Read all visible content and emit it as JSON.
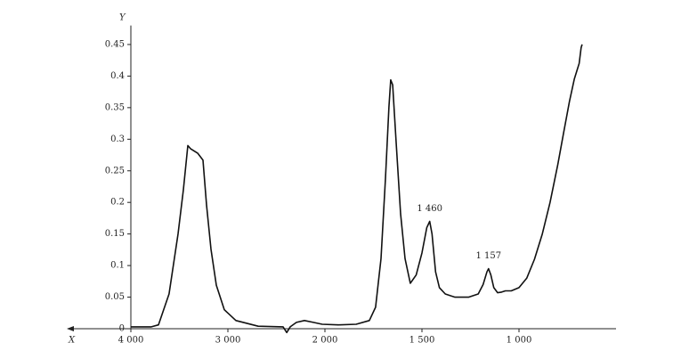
{
  "chart_data": {
    "type": "line",
    "xlabel": "X",
    "ylabel": "Y",
    "x": [
      4000,
      3789,
      3716,
      3606,
      3514,
      3459,
      3413,
      3385,
      3312,
      3257,
      3220,
      3174,
      3119,
      3037,
      2917,
      2688,
      2431,
      2394,
      2358,
      2294,
      2211,
      2119,
      2028,
      1931,
      1839,
      1771,
      1739,
      1711,
      1688,
      1670,
      1661,
      1651,
      1633,
      1610,
      1587,
      1560,
      1530,
      1500,
      1475,
      1460,
      1448,
      1430,
      1410,
      1380,
      1330,
      1260,
      1210,
      1185,
      1165,
      1157,
      1145,
      1130,
      1110,
      1090,
      1070,
      1040,
      1000,
      960,
      920,
      880,
      840,
      800,
      770,
      740,
      715,
      700,
      690,
      680,
      675
    ],
    "series": [
      {
        "color": "#111111",
        "values": [
          0.003,
          0.003,
          0.006,
          0.055,
          0.15,
          0.22,
          0.29,
          0.285,
          0.278,
          0.267,
          0.196,
          0.126,
          0.069,
          0.03,
          0.013,
          0.004,
          0.003,
          -0.006,
          0.003,
          0.01,
          0.013,
          0.01,
          0.007,
          0.006,
          0.007,
          0.013,
          0.034,
          0.111,
          0.238,
          0.351,
          0.394,
          0.386,
          0.295,
          0.182,
          0.111,
          0.072,
          0.085,
          0.12,
          0.16,
          0.17,
          0.15,
          0.09,
          0.065,
          0.055,
          0.05,
          0.05,
          0.055,
          0.07,
          0.09,
          0.095,
          0.085,
          0.065,
          0.057,
          0.058,
          0.06,
          0.06,
          0.065,
          0.08,
          0.11,
          0.15,
          0.2,
          0.26,
          0.31,
          0.36,
          0.395,
          0.41,
          0.42,
          0.445,
          0.45
        ]
      }
    ],
    "xlim": [
      4000,
      500
    ],
    "xticks": [
      {
        "value": 4000,
        "label": "4 000"
      },
      {
        "value": 3000,
        "label": "3 000"
      },
      {
        "value": 2000,
        "label": "2 000"
      },
      {
        "value": 1500,
        "label": "1 500"
      },
      {
        "value": 1000,
        "label": "1 000"
      }
    ],
    "ylim": [
      0,
      0.48
    ],
    "yticks": [
      0,
      0.05,
      0.1,
      0.15,
      0.2,
      0.25,
      0.3,
      0.35,
      0.4,
      0.45
    ],
    "annotations": [
      {
        "text": "1 460",
        "x": 1460
      },
      {
        "text": "1 157",
        "x": 1157
      }
    ]
  }
}
